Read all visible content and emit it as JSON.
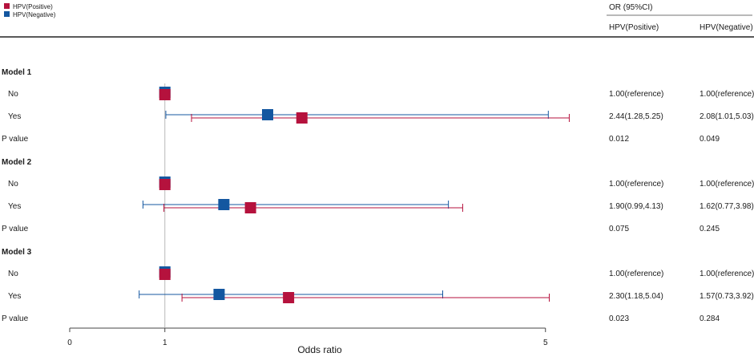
{
  "legend": [
    {
      "label": "HPV(Positive)",
      "color": "#B5123D"
    },
    {
      "label": "HPV(Negative)",
      "color": "#1457A0"
    }
  ],
  "table_header": {
    "group": "OR (95%CI)",
    "col1": "HPV(Positive)",
    "col2": "HPV(Negative)"
  },
  "chart_data": {
    "type": "forest",
    "xlabel": "Odds ratio",
    "xticks": [
      0,
      1,
      5
    ],
    "xlim": [
      0,
      5
    ],
    "reference_line": 1,
    "grid": false,
    "series": [
      {
        "name": "HPV(Positive)",
        "color": "#B5123D"
      },
      {
        "name": "HPV(Negative)",
        "color": "#1457A0"
      }
    ],
    "models": [
      {
        "title": "Model 1",
        "rows": [
          {
            "label": "No",
            "pos": {
              "or": 1.0
            },
            "neg": {
              "or": 1.0
            },
            "pos_text": "1.00(reference)",
            "neg_text": "1.00(reference)"
          },
          {
            "label": "Yes",
            "pos": {
              "or": 2.44,
              "lo": 1.28,
              "hi": 5.25
            },
            "neg": {
              "or": 2.08,
              "lo": 1.01,
              "hi": 5.03
            },
            "pos_text": "2.44(1.28,5.25)",
            "neg_text": "2.08(1.01,5.03)"
          },
          {
            "label": "P value",
            "pos_text": "0.012",
            "neg_text": "0.049"
          }
        ]
      },
      {
        "title": "Model 2",
        "rows": [
          {
            "label": "No",
            "pos": {
              "or": 1.0
            },
            "neg": {
              "or": 1.0
            },
            "pos_text": "1.00(reference)",
            "neg_text": "1.00(reference)"
          },
          {
            "label": "Yes",
            "pos": {
              "or": 1.9,
              "lo": 0.99,
              "hi": 4.13
            },
            "neg": {
              "or": 1.62,
              "lo": 0.77,
              "hi": 3.98
            },
            "pos_text": "1.90(0.99,4.13)",
            "neg_text": "1.62(0.77,3.98)"
          },
          {
            "label": "P value",
            "pos_text": "0.075",
            "neg_text": "0.245"
          }
        ]
      },
      {
        "title": "Model 3",
        "rows": [
          {
            "label": "No",
            "pos": {
              "or": 1.0
            },
            "neg": {
              "or": 1.0
            },
            "pos_text": "1.00(reference)",
            "neg_text": "1.00(reference)"
          },
          {
            "label": "Yes",
            "pos": {
              "or": 2.3,
              "lo": 1.18,
              "hi": 5.04
            },
            "neg": {
              "or": 1.57,
              "lo": 0.73,
              "hi": 3.92
            },
            "pos_text": "2.30(1.18,5.04)",
            "neg_text": "1.57(0.73,3.92)"
          },
          {
            "label": "P value",
            "pos_text": "0.023",
            "neg_text": "0.284"
          }
        ]
      }
    ]
  }
}
